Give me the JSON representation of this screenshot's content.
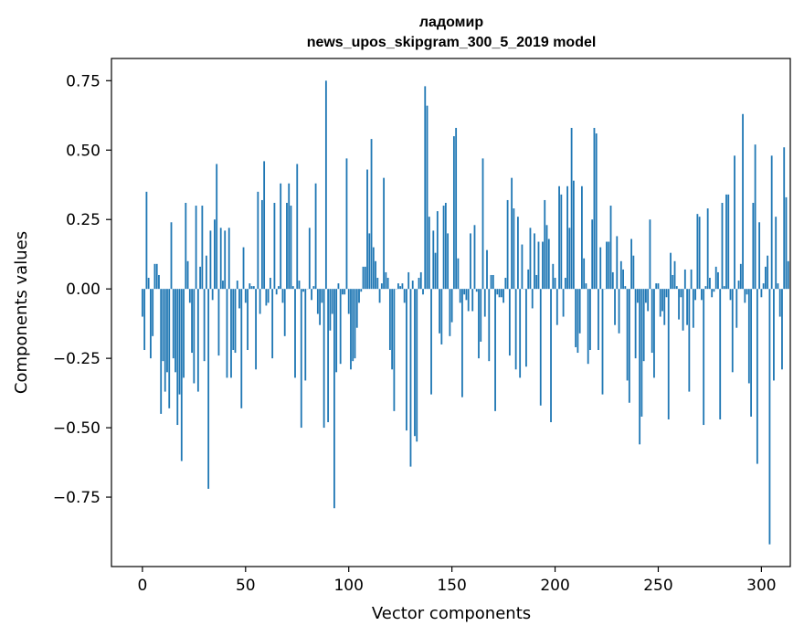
{
  "chart_data": {
    "type": "bar",
    "title": "ладомир",
    "subtitle": "news_upos_skipgram_300_5_2019 model",
    "xlabel": "Vector components",
    "ylabel": "Components values",
    "xlim": [
      -15,
      314
    ],
    "ylim": [
      -1.0,
      0.83
    ],
    "xticks": [
      0,
      50,
      100,
      150,
      200,
      250,
      300
    ],
    "yticks": [
      -0.75,
      -0.5,
      -0.25,
      0.0,
      0.25,
      0.5,
      0.75
    ],
    "ytick_labels": [
      "−0.75",
      "−0.50",
      "−0.25",
      "0.00",
      "0.25",
      "0.50",
      "0.75"
    ],
    "color": "#1f77b4",
    "values": [
      -0.1,
      -0.22,
      0.35,
      0.04,
      -0.25,
      -0.17,
      0.09,
      0.09,
      0.05,
      -0.45,
      -0.26,
      -0.37,
      -0.3,
      -0.43,
      0.24,
      -0.25,
      -0.3,
      -0.49,
      -0.38,
      -0.62,
      -0.32,
      0.31,
      0.1,
      -0.05,
      -0.23,
      -0.34,
      0.3,
      -0.37,
      0.08,
      0.3,
      -0.26,
      0.12,
      -0.72,
      0.21,
      -0.04,
      0.25,
      0.45,
      -0.24,
      0.22,
      0.03,
      0.21,
      -0.32,
      0.22,
      -0.32,
      -0.22,
      -0.23,
      0.03,
      -0.07,
      -0.43,
      0.15,
      -0.05,
      -0.22,
      0.02,
      0.01,
      0.01,
      -0.29,
      0.35,
      -0.09,
      0.32,
      0.46,
      -0.06,
      -0.05,
      0.04,
      -0.25,
      0.31,
      -0.02,
      0.01,
      0.38,
      -0.05,
      -0.17,
      0.31,
      0.38,
      0.3,
      0.01,
      -0.32,
      0.45,
      0.03,
      -0.5,
      -0.01,
      -0.33,
      0.0,
      0.22,
      -0.04,
      0.01,
      0.38,
      -0.09,
      -0.13,
      -0.05,
      -0.5,
      0.75,
      -0.48,
      -0.15,
      -0.09,
      -0.79,
      -0.3,
      0.02,
      -0.27,
      -0.02,
      -0.02,
      0.47,
      -0.09,
      -0.29,
      -0.26,
      -0.25,
      -0.14,
      -0.05,
      -0.01,
      0.08,
      0.08,
      0.43,
      0.2,
      0.54,
      0.15,
      0.1,
      0.04,
      -0.05,
      0.02,
      0.4,
      0.06,
      0.04,
      -0.22,
      -0.29,
      -0.44,
      0.0,
      0.02,
      0.01,
      0.02,
      -0.05,
      -0.51,
      0.06,
      -0.64,
      0.03,
      -0.53,
      -0.55,
      0.04,
      0.06,
      -0.02,
      0.73,
      0.66,
      0.26,
      -0.38,
      0.21,
      0.13,
      0.28,
      -0.16,
      -0.2,
      0.3,
      0.31,
      0.2,
      -0.17,
      -0.12,
      0.55,
      0.58,
      0.11,
      -0.05,
      -0.39,
      -0.02,
      -0.04,
      -0.08,
      0.2,
      -0.08,
      0.23,
      -0.01,
      -0.25,
      -0.19,
      0.47,
      -0.1,
      0.14,
      -0.26,
      0.05,
      0.05,
      -0.44,
      -0.02,
      -0.03,
      -0.03,
      -0.05,
      0.04,
      0.32,
      -0.24,
      0.4,
      0.29,
      -0.29,
      0.26,
      -0.32,
      0.16,
      0.0,
      -0.28,
      0.07,
      0.22,
      -0.07,
      0.2,
      0.05,
      0.17,
      -0.42,
      0.17,
      0.32,
      0.23,
      0.18,
      -0.48,
      0.09,
      0.04,
      -0.13,
      0.37,
      0.34,
      -0.1,
      0.04,
      0.37,
      0.22,
      0.58,
      0.39,
      -0.21,
      -0.23,
      -0.16,
      0.37,
      0.11,
      0.02,
      -0.27,
      -0.22,
      0.25,
      0.58,
      0.56,
      -0.22,
      0.15,
      -0.38,
      0.0,
      0.17,
      0.17,
      0.3,
      0.06,
      -0.13,
      0.19,
      -0.16,
      0.1,
      0.07,
      0.01,
      -0.33,
      -0.41,
      0.18,
      0.12,
      -0.25,
      -0.05,
      -0.56,
      -0.46,
      -0.26,
      -0.05,
      -0.08,
      0.25,
      -0.23,
      -0.32,
      0.02,
      0.02,
      -0.1,
      -0.08,
      -0.13,
      -0.03,
      -0.47,
      0.13,
      0.05,
      0.1,
      0.01,
      -0.11,
      -0.03,
      -0.15,
      0.07,
      -0.13,
      -0.37,
      0.07,
      -0.14,
      -0.04,
      0.27,
      0.26,
      -0.04,
      -0.49,
      0.01,
      0.29,
      0.04,
      -0.03,
      -0.01,
      0.08,
      0.06,
      -0.47,
      0.31,
      0.01,
      0.34,
      0.34,
      -0.04,
      -0.3,
      0.48,
      -0.14,
      0.03,
      0.09,
      0.63,
      -0.05,
      -0.02,
      -0.34,
      -0.46,
      0.31,
      0.52,
      -0.63,
      0.24,
      -0.03,
      0.02,
      0.08,
      0.12,
      -0.92,
      0.48,
      -0.33,
      0.26,
      0.02,
      -0.1,
      -0.29,
      0.51,
      0.33,
      0.1
    ]
  }
}
